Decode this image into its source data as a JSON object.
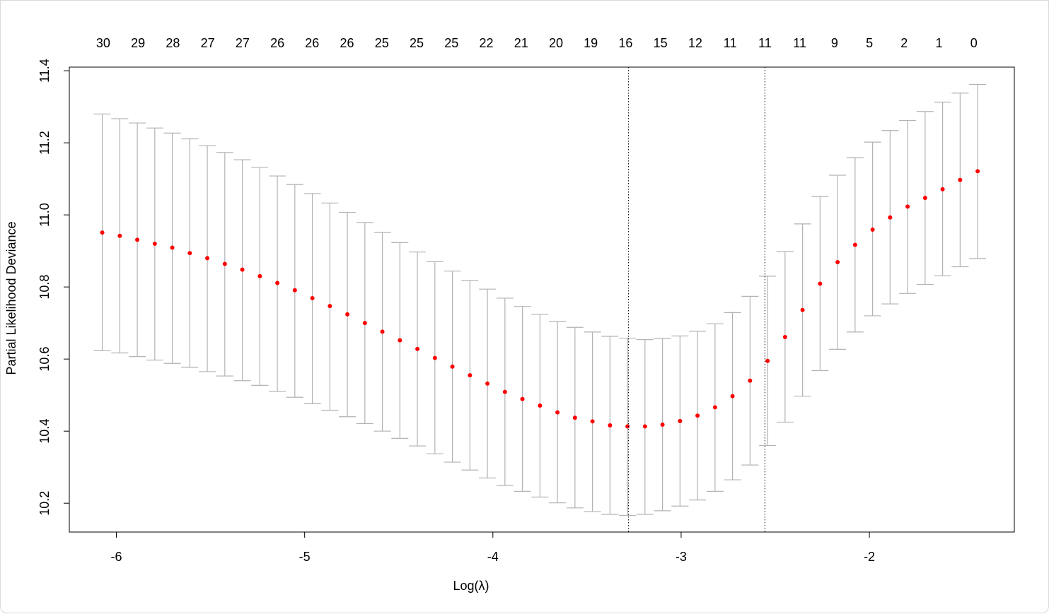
{
  "chart_data": {
    "type": "scatter",
    "title": "",
    "xlabel": "Log(λ)",
    "ylabel": "Partial Likelihood Deviance",
    "xlim": [
      -6.25,
      -1.23
    ],
    "ylim": [
      10.12,
      11.41
    ],
    "x_ticks": [
      -6,
      -5,
      -4,
      -3,
      -2
    ],
    "x_tick_labels": [
      "-6",
      "-5",
      "-4",
      "-3",
      "-2"
    ],
    "y_ticks": [
      10.2,
      10.4,
      10.6,
      10.8,
      11.0,
      11.2,
      11.4
    ],
    "y_tick_labels": [
      "10.2",
      "10.4",
      "10.6",
      "10.8",
      "11.0",
      "11.2",
      "11.4"
    ],
    "top_axis_x": [
      -6.07,
      -5.885,
      -5.7,
      -5.515,
      -5.33,
      -5.145,
      -4.96,
      -4.775,
      -4.59,
      -4.405,
      -4.22,
      -4.035,
      -3.85,
      -3.665,
      -3.48,
      -3.295,
      -3.11,
      -2.925,
      -2.74,
      -2.555,
      -2.37,
      -2.185,
      -2.0,
      -1.815,
      -1.63,
      -1.445
    ],
    "top_axis_labels": [
      "30",
      "29",
      "28",
      "27",
      "27",
      "26",
      "26",
      "26",
      "25",
      "25",
      "25",
      "22",
      "21",
      "20",
      "19",
      "16",
      "15",
      "12",
      "11",
      "11",
      "11",
      "9",
      "5",
      "2",
      "1",
      "0"
    ],
    "vlines": [
      -3.28,
      -2.555
    ],
    "point_color": "#ff0000",
    "errorbar_color": "#b3b3b3",
    "series": [
      {
        "x": [
          -6.075,
          -5.982,
          -5.889,
          -5.796,
          -5.703,
          -5.61,
          -5.517,
          -5.424,
          -5.331,
          -5.238,
          -5.145,
          -5.052,
          -4.959,
          -4.866,
          -4.773,
          -4.68,
          -4.587,
          -4.494,
          -4.401,
          -4.308,
          -4.215,
          -4.122,
          -4.029,
          -3.936,
          -3.843,
          -3.75,
          -3.657,
          -3.564,
          -3.471,
          -3.378,
          -3.285,
          -3.192,
          -3.099,
          -3.006,
          -2.913,
          -2.82,
          -2.727,
          -2.634,
          -2.541,
          -2.448,
          -2.355,
          -2.262,
          -2.169,
          -2.076,
          -1.983,
          -1.89,
          -1.797,
          -1.704,
          -1.611,
          -1.518,
          -1.425
        ],
        "y": [
          10.951,
          10.942,
          10.931,
          10.92,
          10.909,
          10.894,
          10.88,
          10.864,
          10.848,
          10.83,
          10.811,
          10.791,
          10.769,
          10.747,
          10.724,
          10.7,
          10.676,
          10.652,
          10.628,
          10.603,
          10.579,
          10.555,
          10.532,
          10.509,
          10.489,
          10.471,
          10.452,
          10.437,
          10.427,
          10.416,
          10.413,
          10.413,
          10.418,
          10.428,
          10.443,
          10.466,
          10.497,
          10.54,
          10.595,
          10.661,
          10.736,
          10.809,
          10.869,
          10.917,
          10.959,
          10.993,
          11.023,
          11.047,
          11.071,
          11.097,
          11.121
        ],
        "lower": [
          10.623,
          10.617,
          10.607,
          10.597,
          10.588,
          10.577,
          10.565,
          10.553,
          10.54,
          10.527,
          10.51,
          10.494,
          10.476,
          10.458,
          10.44,
          10.421,
          10.4,
          10.38,
          10.359,
          10.337,
          10.314,
          10.292,
          10.27,
          10.249,
          10.233,
          10.217,
          10.201,
          10.187,
          10.177,
          10.169,
          10.166,
          10.169,
          10.179,
          10.192,
          10.209,
          10.233,
          10.265,
          10.306,
          10.36,
          10.425,
          10.497,
          10.568,
          10.627,
          10.675,
          10.72,
          10.753,
          10.782,
          10.807,
          10.831,
          10.856,
          10.879
        ],
        "upper": [
          11.28,
          11.267,
          11.255,
          11.241,
          11.227,
          11.211,
          11.192,
          11.173,
          11.153,
          11.132,
          11.108,
          11.084,
          11.059,
          11.033,
          11.007,
          10.979,
          10.951,
          10.923,
          10.897,
          10.87,
          10.844,
          10.818,
          10.794,
          10.769,
          10.746,
          10.724,
          10.704,
          10.688,
          10.675,
          10.663,
          10.658,
          10.654,
          10.657,
          10.664,
          10.677,
          10.698,
          10.729,
          10.774,
          10.83,
          10.898,
          10.975,
          11.051,
          11.11,
          11.159,
          11.202,
          11.234,
          11.262,
          11.287,
          11.313,
          11.338,
          11.362
        ]
      }
    ]
  }
}
